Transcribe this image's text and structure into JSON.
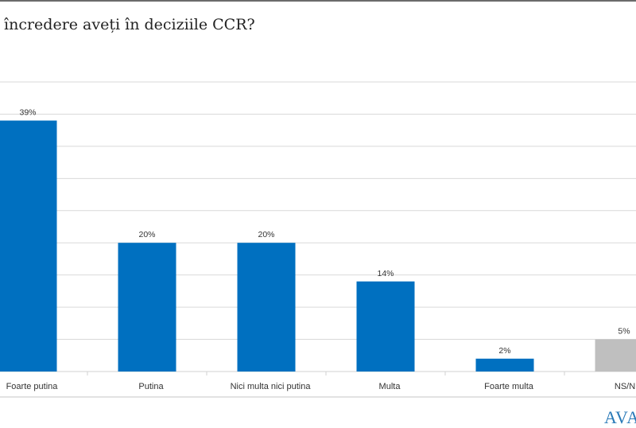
{
  "title": "încredere aveți în deciziile CCR?",
  "logo_text": "AVAN",
  "colors": {
    "bar": "#0070c0",
    "bar_other": "#bfbfbf",
    "grid": "#d9d9d9",
    "text": "#333333"
  },
  "chart_data": {
    "type": "bar",
    "title": "încredere aveți în deciziile CCR?",
    "categories": [
      "Foarte putina",
      "Putina",
      "Nici multa nici putina",
      "Multa",
      "Foarte multa",
      "NS/NR"
    ],
    "values": [
      39,
      20,
      20,
      14,
      2,
      5
    ],
    "labels": [
      "39%",
      "20%",
      "20%",
      "14%",
      "2%",
      "5%"
    ],
    "unit": "%",
    "ylim": [
      0,
      45
    ],
    "grid": true,
    "legend": "none"
  }
}
